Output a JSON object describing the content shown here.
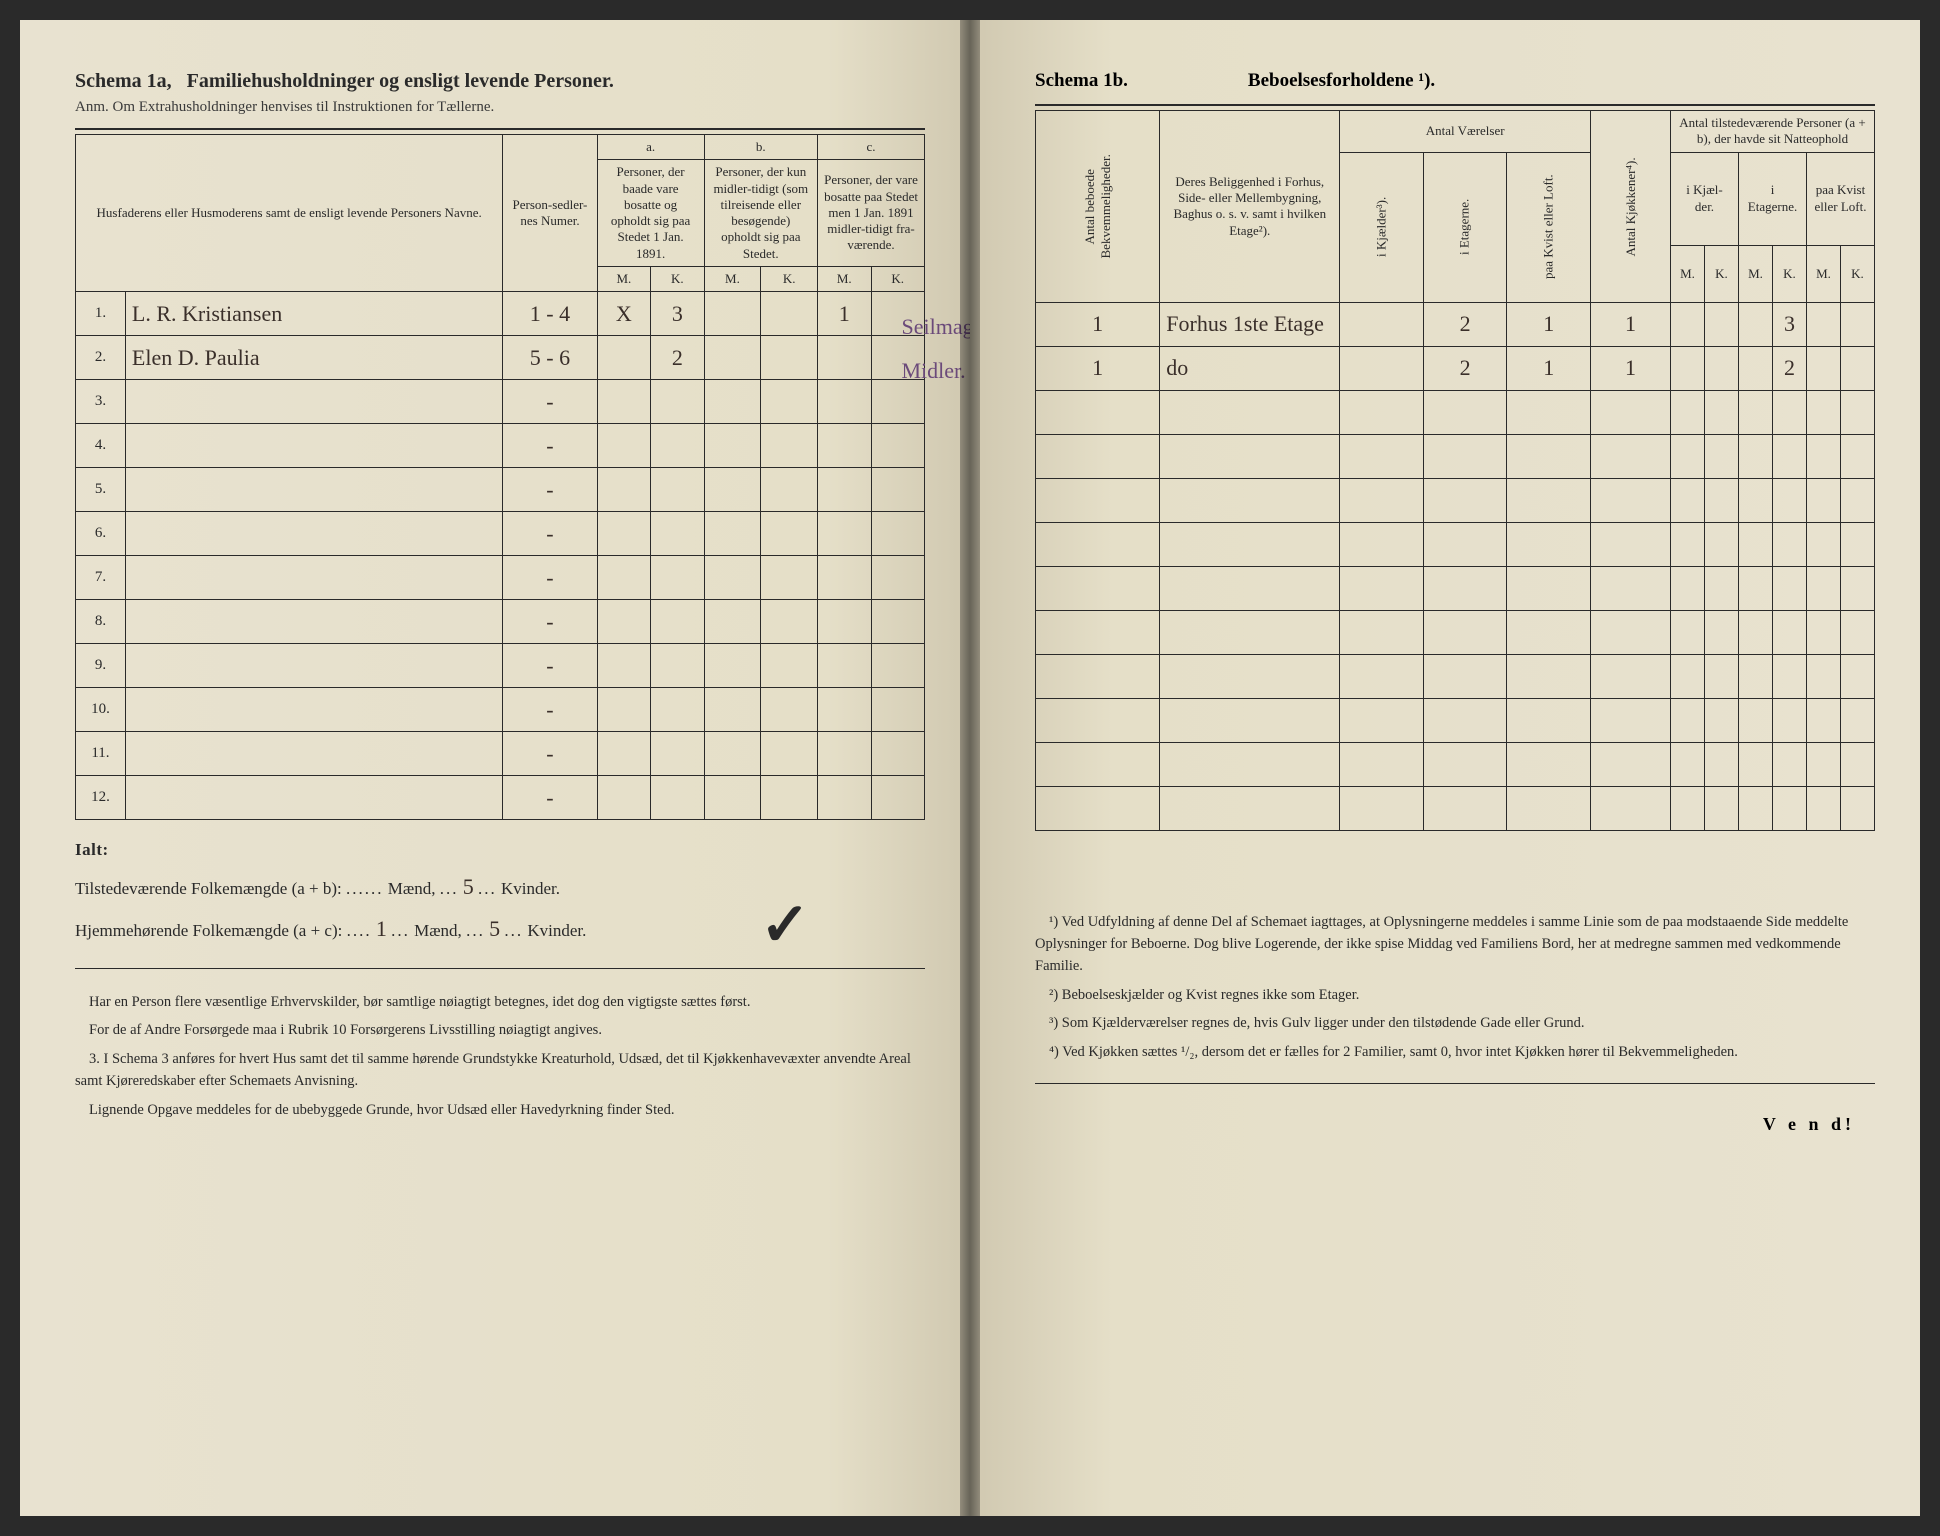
{
  "left": {
    "title_a": "Schema 1a,",
    "title_b": "Familiehusholdninger og ensligt levende Personer.",
    "subtitle": "Anm. Om Extrahusholdninger henvises til Instruktionen for Tællerne.",
    "headers": {
      "name": "Husfaderens eller Husmoderens samt de ensligt levende Personers Navne.",
      "numer": "Person-sedler-nes Numer.",
      "a_label": "a.",
      "a_text": "Personer, der baade vare bosatte og opholdt sig paa Stedet 1 Jan. 1891.",
      "b_label": "b.",
      "b_text": "Personer, der kun midler-tidigt (som tilreisende eller besøgende) opholdt sig paa Stedet.",
      "c_label": "c.",
      "c_text": "Personer, der vare bosatte paa Stedet men 1 Jan. 1891 midler-tidigt fra-værende.",
      "m": "M.",
      "k": "K."
    },
    "rows": [
      {
        "n": "1.",
        "name": "L. R. Kristiansen",
        "numer": "1 - 4",
        "am": "X",
        "ak": "3",
        "bm": "",
        "bk": "",
        "cm": "1",
        "ck": "",
        "note": "Seilmagertil sno."
      },
      {
        "n": "2.",
        "name": "Elen D. Paulia",
        "numer": "5 - 6",
        "am": "",
        "ak": "2",
        "bm": "",
        "bk": "",
        "cm": "",
        "ck": "",
        "note": "Midler."
      },
      {
        "n": "3.",
        "name": "",
        "numer": "-",
        "am": "",
        "ak": "",
        "bm": "",
        "bk": "",
        "cm": "",
        "ck": "",
        "note": ""
      },
      {
        "n": "4.",
        "name": "",
        "numer": "-",
        "am": "",
        "ak": "",
        "bm": "",
        "bk": "",
        "cm": "",
        "ck": "",
        "note": ""
      },
      {
        "n": "5.",
        "name": "",
        "numer": "-",
        "am": "",
        "ak": "",
        "bm": "",
        "bk": "",
        "cm": "",
        "ck": "",
        "note": ""
      },
      {
        "n": "6.",
        "name": "",
        "numer": "-",
        "am": "",
        "ak": "",
        "bm": "",
        "bk": "",
        "cm": "",
        "ck": "",
        "note": ""
      },
      {
        "n": "7.",
        "name": "",
        "numer": "-",
        "am": "",
        "ak": "",
        "bm": "",
        "bk": "",
        "cm": "",
        "ck": "",
        "note": ""
      },
      {
        "n": "8.",
        "name": "",
        "numer": "-",
        "am": "",
        "ak": "",
        "bm": "",
        "bk": "",
        "cm": "",
        "ck": "",
        "note": ""
      },
      {
        "n": "9.",
        "name": "",
        "numer": "-",
        "am": "",
        "ak": "",
        "bm": "",
        "bk": "",
        "cm": "",
        "ck": "",
        "note": ""
      },
      {
        "n": "10.",
        "name": "",
        "numer": "-",
        "am": "",
        "ak": "",
        "bm": "",
        "bk": "",
        "cm": "",
        "ck": "",
        "note": ""
      },
      {
        "n": "11.",
        "name": "",
        "numer": "-",
        "am": "",
        "ak": "",
        "bm": "",
        "bk": "",
        "cm": "",
        "ck": "",
        "note": ""
      },
      {
        "n": "12.",
        "name": "",
        "numer": "-",
        "am": "",
        "ak": "",
        "bm": "",
        "bk": "",
        "cm": "",
        "ck": "",
        "note": ""
      }
    ],
    "totals": {
      "ialt": "Ialt:",
      "line1_label": "Tilstedeværende Folkemængde (a + b):",
      "line1_m": "",
      "line1_k": "5",
      "line2_label": "Hjemmehørende Folkemængde (a + c):",
      "line2_m": "1",
      "line2_k": "5",
      "maend": "Mænd,",
      "kvinder": "Kvinder."
    },
    "foot": {
      "p1": "Har en Person flere væsentlige Erhvervskilder, bør samtlige nøiagtigt betegnes, idet dog den vigtigste sættes først.",
      "p2": "For de af Andre Forsørgede maa i Rubrik 10 Forsørgerens Livsstilling nøiagtigt angives.",
      "p3n": "3.",
      "p3": "I Schema 3 anføres for hvert Hus samt det til samme hørende Grundstykke Kreaturhold, Udsæd, det til Kjøkkenhavevæxter anvendte Areal samt Kjøreredskaber efter Schemaets Anvisning.",
      "p4": "Lignende Opgave meddeles for de ubebyggede Grunde, hvor Udsæd eller Havedyrkning finder Sted."
    }
  },
  "right": {
    "schema": "Schema 1b.",
    "title": "Beboelsesforholdene ¹).",
    "headers": {
      "antal_beboede": "Antal beboede Bekvemmeligheder.",
      "beliggenhed": "Deres Beliggenhed i Forhus, Side- eller Mellembygning, Baghus o. s. v. samt i hvilken Etage²).",
      "antal_vaer": "Antal Værelser",
      "i_kj": "i Kjælder³).",
      "i_et": "i Etagerne.",
      "paa_kv": "paa Kvist eller Loft.",
      "antal_kj": "Antal Kjøkkener⁴).",
      "antal_pers": "Antal tilstedeværende Personer (a + b), der havde sit Natteophold",
      "ik": "i Kjæl-der.",
      "ie": "i Etagerne.",
      "pk": "paa Kvist eller Loft.",
      "m": "M.",
      "k": "K."
    },
    "rows": [
      {
        "ab": "1",
        "bel": "Forhus 1ste Etage",
        "kj": "",
        "et": "2",
        "kv": "1",
        "akk": "1",
        "ikm": "",
        "ikk": "",
        "iem": "",
        "iek": "3",
        "pkm": "",
        "pkk": ""
      },
      {
        "ab": "1",
        "bel": "do",
        "kj": "",
        "et": "2",
        "kv": "1",
        "akk": "1",
        "ikm": "",
        "ikk": "",
        "iem": "",
        "iek": "2",
        "pkm": "",
        "pkk": ""
      },
      {
        "ab": "",
        "bel": "",
        "kj": "",
        "et": "",
        "kv": "",
        "akk": "",
        "ikm": "",
        "ikk": "",
        "iem": "",
        "iek": "",
        "pkm": "",
        "pkk": ""
      },
      {
        "ab": "",
        "bel": "",
        "kj": "",
        "et": "",
        "kv": "",
        "akk": "",
        "ikm": "",
        "ikk": "",
        "iem": "",
        "iek": "",
        "pkm": "",
        "pkk": ""
      },
      {
        "ab": "",
        "bel": "",
        "kj": "",
        "et": "",
        "kv": "",
        "akk": "",
        "ikm": "",
        "ikk": "",
        "iem": "",
        "iek": "",
        "pkm": "",
        "pkk": ""
      },
      {
        "ab": "",
        "bel": "",
        "kj": "",
        "et": "",
        "kv": "",
        "akk": "",
        "ikm": "",
        "ikk": "",
        "iem": "",
        "iek": "",
        "pkm": "",
        "pkk": ""
      },
      {
        "ab": "",
        "bel": "",
        "kj": "",
        "et": "",
        "kv": "",
        "akk": "",
        "ikm": "",
        "ikk": "",
        "iem": "",
        "iek": "",
        "pkm": "",
        "pkk": ""
      },
      {
        "ab": "",
        "bel": "",
        "kj": "",
        "et": "",
        "kv": "",
        "akk": "",
        "ikm": "",
        "ikk": "",
        "iem": "",
        "iek": "",
        "pkm": "",
        "pkk": ""
      },
      {
        "ab": "",
        "bel": "",
        "kj": "",
        "et": "",
        "kv": "",
        "akk": "",
        "ikm": "",
        "ikk": "",
        "iem": "",
        "iek": "",
        "pkm": "",
        "pkk": ""
      },
      {
        "ab": "",
        "bel": "",
        "kj": "",
        "et": "",
        "kv": "",
        "akk": "",
        "ikm": "",
        "ikk": "",
        "iem": "",
        "iek": "",
        "pkm": "",
        "pkk": ""
      },
      {
        "ab": "",
        "bel": "",
        "kj": "",
        "et": "",
        "kv": "",
        "akk": "",
        "ikm": "",
        "ikk": "",
        "iem": "",
        "iek": "",
        "pkm": "",
        "pkk": ""
      },
      {
        "ab": "",
        "bel": "",
        "kj": "",
        "et": "",
        "kv": "",
        "akk": "",
        "ikm": "",
        "ikk": "",
        "iem": "",
        "iek": "",
        "pkm": "",
        "pkk": ""
      }
    ],
    "foot": {
      "n1": "¹) Ved Udfyldning af denne Del af Schemaet iagttages, at Oplysningerne meddeles i samme Linie som de paa modstaaende Side meddelte Oplysninger for Beboerne. Dog blive Logerende, der ikke spise Middag ved Familiens Bord, her at medregne sammen med vedkommende Familie.",
      "n2": "²) Beboelseskjælder og Kvist regnes ikke som Etager.",
      "n3": "³) Som Kjælderværelser regnes de, hvis Gulv ligger under den tilstødende Gade eller Grund.",
      "n4": "⁴) Ved Kjøkken sættes ¹/₂, dersom det er fælles for 2 Familier, samt 0, hvor intet Kjøkken hører til Bekvemmeligheden."
    },
    "vend": "V e n d!"
  }
}
